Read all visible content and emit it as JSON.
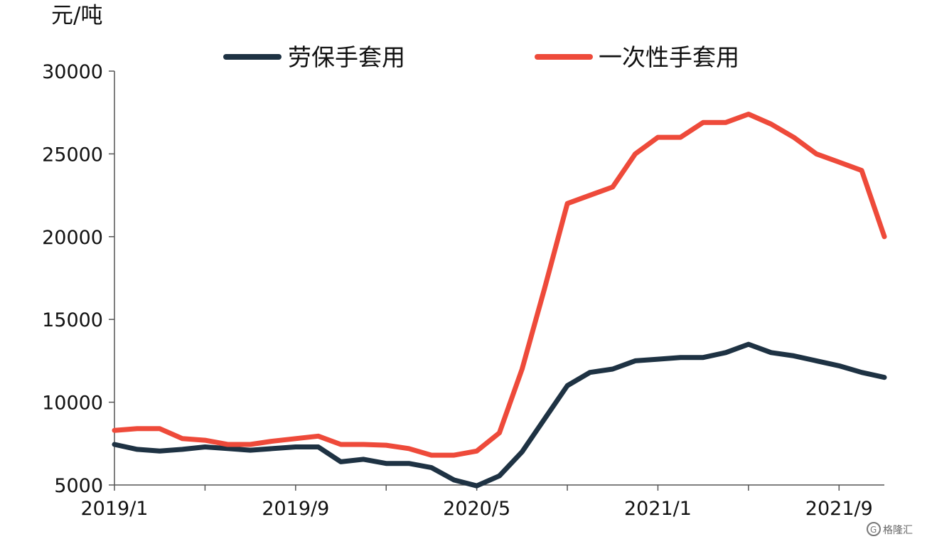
{
  "chart_data": {
    "type": "line",
    "ylabel": "元/吨",
    "ylim": [
      5000,
      30000
    ],
    "yticks": [
      5000,
      10000,
      15000,
      20000,
      25000,
      30000
    ],
    "x": [
      "2019/1",
      "2019/2",
      "2019/3",
      "2019/4",
      "2019/5",
      "2019/6",
      "2019/7",
      "2019/8",
      "2019/9",
      "2019/10",
      "2019/11",
      "2019/12",
      "2020/1",
      "2020/2",
      "2020/3",
      "2020/4",
      "2020/5",
      "2020/6",
      "2020/7",
      "2020/8",
      "2020/9",
      "2020/10",
      "2020/11",
      "2020/12",
      "2021/1",
      "2021/2",
      "2021/3",
      "2021/4",
      "2021/5",
      "2021/6",
      "2021/7",
      "2021/8",
      "2021/9",
      "2021/10",
      "2021/11"
    ],
    "xtick_labels": [
      "2019/1",
      "2019/9",
      "2020/5",
      "2021/1",
      "2021/9"
    ],
    "legend_position": "top",
    "grid": false,
    "series": [
      {
        "name": "劳保手套用",
        "color": "#1e3243",
        "values": [
          7450,
          7150,
          7050,
          7150,
          7300,
          7200,
          7100,
          7200,
          7300,
          7300,
          6400,
          6550,
          6300,
          6300,
          6050,
          5300,
          4950,
          5550,
          7000,
          9000,
          11000,
          11800,
          12000,
          12500,
          12600,
          12700,
          12700,
          13000,
          13500,
          13000,
          12800,
          12500,
          12200,
          11800,
          11500
        ]
      },
      {
        "name": "一次性手套用",
        "color": "#ee4a3a",
        "values": [
          8300,
          8400,
          8400,
          7800,
          7700,
          7450,
          7450,
          7650,
          7800,
          7950,
          7450,
          7450,
          7400,
          7200,
          6800,
          6800,
          7050,
          8150,
          12000,
          16900,
          22000,
          22500,
          23000,
          25000,
          26000,
          26000,
          26900,
          26900,
          27400,
          26800,
          26000,
          25000,
          24500,
          24000,
          20000
        ]
      }
    ]
  },
  "watermark": {
    "text": "格隆汇",
    "icon": "g-logo-icon"
  }
}
